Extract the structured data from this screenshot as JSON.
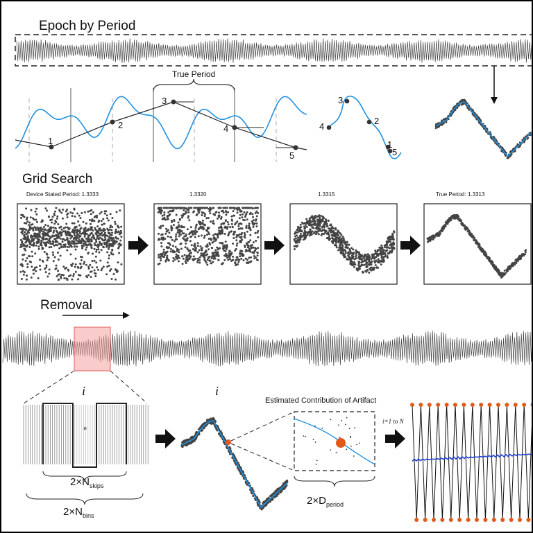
{
  "sections": {
    "epoch_title": "Epoch by Period",
    "grid_title": "Grid Search",
    "removal_title": "Removal"
  },
  "epoch": {
    "true_period_label": "True Period",
    "markers": [
      "1",
      "2",
      "3",
      "4",
      "5"
    ]
  },
  "grid": {
    "panels": [
      {
        "label": "Device Stated Period: 1.3333"
      },
      {
        "label": "1.3320"
      },
      {
        "label": "1.3315"
      },
      {
        "label": "True Period: 1.3313"
      }
    ]
  },
  "removal": {
    "index_label": "i",
    "asterisk": "*",
    "nskips_label": "2×N",
    "nskips_sub": "skips",
    "nbins_label": "2×N",
    "nbins_sub": "bins",
    "artifact_title": "Estimated Contribution of Artifact",
    "dperiod_label": "2×D",
    "dperiod_sub": "period",
    "loop_label": "i=1 to N"
  },
  "colors": {
    "signal": "#1e90e0",
    "dots": "#444444",
    "highlight": "#f5a0a0",
    "orange": "#e05a1a",
    "blue_line": "#2040d0"
  }
}
